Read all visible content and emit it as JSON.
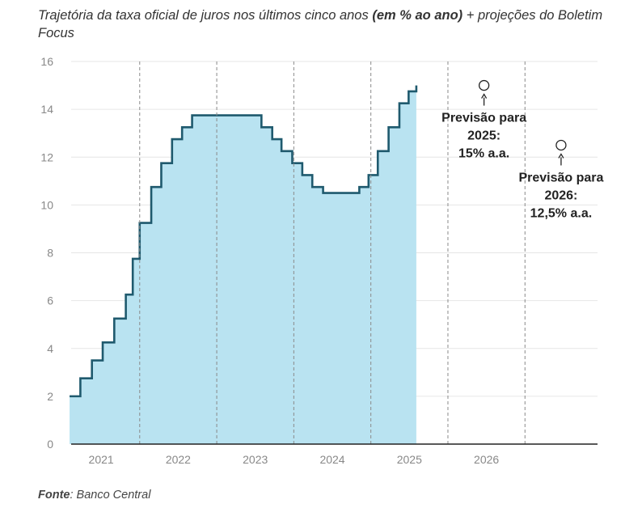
{
  "title_main": "Trajetória da taxa oficial de juros nos últimos cinco anos ",
  "title_bold": "(em % ao ano)",
  "title_tail": " + projeções do Boletim Focus",
  "source_label": "Fonte",
  "source_text": ": Banco Central",
  "colors": {
    "fill": "#b9e3f1",
    "line": "#1f5a6e",
    "grid": "#e6e6e6",
    "axis": "#222222",
    "divider": "#8a8a8a"
  },
  "chart_data": {
    "type": "area",
    "step": true,
    "ylim": [
      0,
      16
    ],
    "yticks": [
      0,
      2,
      4,
      6,
      8,
      10,
      12,
      14,
      16
    ],
    "grid": true,
    "xlim": [
      2020.6,
      2027.5
    ],
    "year_labels": [
      {
        "label": "2021",
        "x": 2021.0
      },
      {
        "label": "2022",
        "x": 2022.0
      },
      {
        "label": "2023",
        "x": 2023.0
      },
      {
        "label": "2024",
        "x": 2024.0
      },
      {
        "label": "2025",
        "x": 2025.0
      },
      {
        "label": "2026",
        "x": 2026.0
      }
    ],
    "year_dividers": [
      2021.5,
      2022.5,
      2023.5,
      2024.5,
      2025.5,
      2026.5
    ],
    "series": [
      {
        "points": [
          [
            2020.59,
            2.0
          ],
          [
            2020.73,
            2.75
          ],
          [
            2020.88,
            3.5
          ],
          [
            2021.02,
            4.25
          ],
          [
            2021.17,
            5.25
          ],
          [
            2021.32,
            6.25
          ],
          [
            2021.41,
            7.75
          ],
          [
            2021.5,
            9.25
          ],
          [
            2021.65,
            10.75
          ],
          [
            2021.78,
            11.75
          ],
          [
            2021.92,
            12.75
          ],
          [
            2022.05,
            13.25
          ],
          [
            2022.18,
            13.75
          ],
          [
            2023.08,
            13.25
          ],
          [
            2023.22,
            12.75
          ],
          [
            2023.34,
            12.25
          ],
          [
            2023.48,
            11.75
          ],
          [
            2023.61,
            11.25
          ],
          [
            2023.74,
            10.75
          ],
          [
            2023.88,
            10.5
          ],
          [
            2024.2,
            10.5
          ],
          [
            2024.35,
            10.75
          ],
          [
            2024.47,
            11.25
          ],
          [
            2024.59,
            12.25
          ],
          [
            2024.73,
            13.25
          ],
          [
            2024.87,
            14.25
          ],
          [
            2024.99,
            14.75
          ],
          [
            2025.09,
            15.0
          ]
        ],
        "x_end": 2025.09
      }
    ],
    "projections": [
      {
        "x": 2026.0,
        "y": 15.0,
        "lines": [
          "Previsão para",
          "2025:",
          "15% a.a."
        ]
      },
      {
        "x": 2027.0,
        "y": 12.5,
        "lines": [
          "Previsão para",
          "2026:",
          "12,5% a.a."
        ]
      }
    ]
  }
}
